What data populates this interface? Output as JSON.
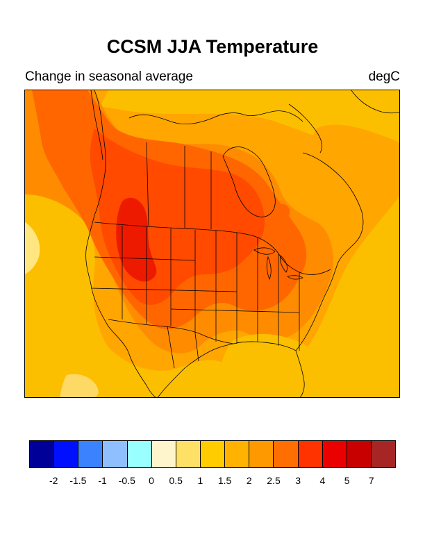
{
  "title": "CCSM JJA Temperature",
  "subtitle_left": "Change in seasonal average",
  "subtitle_right": "degC",
  "colorbar": {
    "colors": [
      "#000099",
      "#0010ff",
      "#3b82ff",
      "#8fbfff",
      "#99ffff",
      "#fff5cc",
      "#ffe066",
      "#ffcc00",
      "#ffb300",
      "#ff9900",
      "#ff6e00",
      "#ff3300",
      "#eb0000",
      "#c90000",
      "#a62626"
    ],
    "labels": [
      "-2",
      "-1.5",
      "-1",
      "-0.5",
      "0",
      "0.5",
      "1",
      "1.5",
      "2",
      "2.5",
      "3",
      "4",
      "5",
      "7"
    ]
  },
  "map": {
    "region": "North America",
    "field": "JJA temperature change",
    "palette": {
      "c1": "#fcbf00",
      "c2": "#ffa600",
      "c3": "#ff8c00",
      "c4": "#ff6600",
      "c5": "#ff4a00",
      "c6": "#ee1a00",
      "light": "#ffd966",
      "pale": "#ffe680",
      "line": "#000000"
    }
  }
}
